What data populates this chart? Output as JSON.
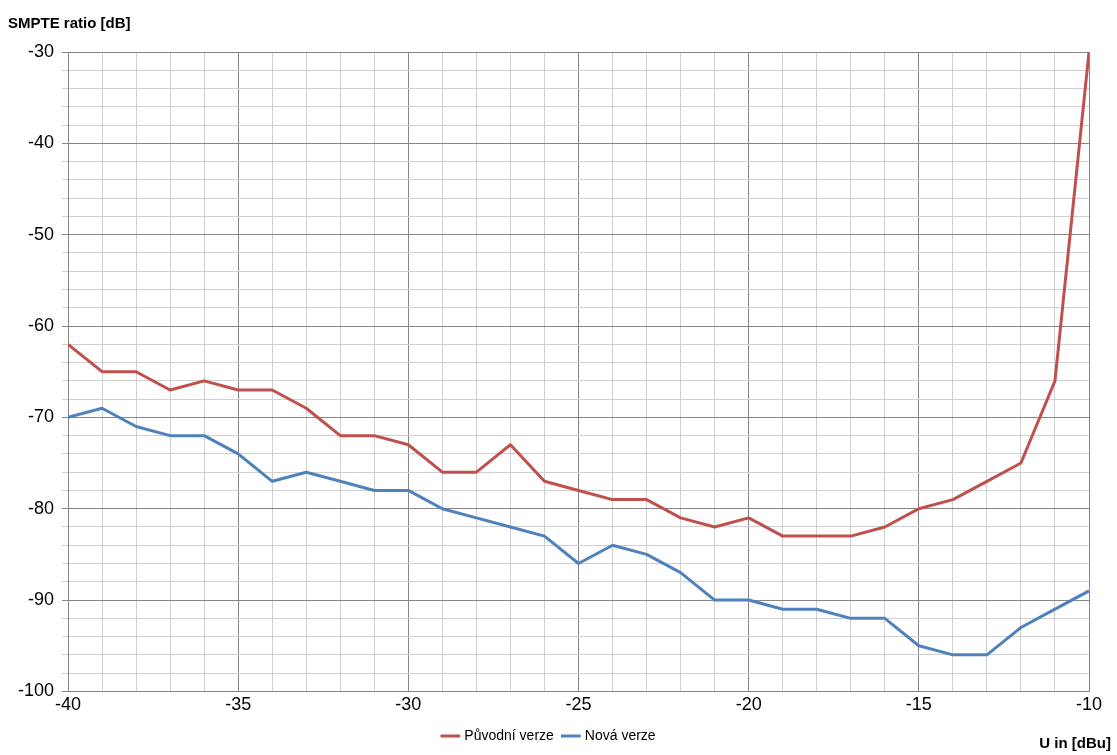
{
  "chart_data": {
    "type": "line",
    "xlabel": "U in [dBu]",
    "ylabel": "SMPTE ratio [dB]",
    "x": [
      -40,
      -39,
      -38,
      -37,
      -36,
      -35,
      -34,
      -33,
      -32,
      -31,
      -30,
      -29,
      -28,
      -27,
      -26,
      -25,
      -24,
      -23,
      -22,
      -21,
      -20,
      -19,
      -18,
      -17,
      -16,
      -15,
      -14,
      -13,
      -12,
      -11,
      -10
    ],
    "series": [
      {
        "name": "Původní verze",
        "color": "#c0504d",
        "values": [
          -62,
          -65,
          -65,
          -67,
          -66,
          -67,
          -67,
          -69,
          -72,
          -72,
          -73,
          -76,
          -76,
          -73,
          -77,
          -78,
          -79,
          -79,
          -81,
          -82,
          -81,
          -83,
          -83,
          -83,
          -82,
          -80,
          -79,
          -77,
          -75,
          -66,
          -30
        ]
      },
      {
        "name": "Nová verze",
        "color": "#4f81bd",
        "values": [
          -70,
          -69,
          -71,
          -72,
          -72,
          -74,
          -77,
          -76,
          -77,
          -78,
          -78,
          -80,
          -81,
          -82,
          -83,
          -86,
          -84,
          -85,
          -87,
          -90,
          -90,
          -91,
          -91,
          -92,
          -92,
          -95,
          -96,
          -96,
          -93,
          -91,
          -89
        ]
      }
    ],
    "xlim": [
      -40,
      -10
    ],
    "xticks": [
      -40,
      {
        "value": -39,
        "label": null
      },
      {
        "value": -38,
        "label": null
      },
      {
        "value": -37,
        "label": null
      },
      {
        "value": -36,
        "label": null
      },
      -35,
      {
        "value": -34,
        "label": null
      },
      {
        "value": -33,
        "label": null
      },
      {
        "value": -32,
        "label": null
      },
      {
        "value": -31,
        "label": null
      },
      -30,
      {
        "value": -29,
        "label": null
      },
      {
        "value": -28,
        "label": null
      },
      {
        "value": -27,
        "label": null
      },
      {
        "value": -26,
        "label": null
      },
      -25,
      {
        "value": -24,
        "label": null
      },
      {
        "value": -23,
        "label": null
      },
      {
        "value": -22,
        "label": null
      },
      {
        "value": -21,
        "label": null
      },
      -20,
      {
        "value": -19,
        "label": null
      },
      {
        "value": -18,
        "label": null
      },
      {
        "value": -17,
        "label": null
      },
      {
        "value": -16,
        "label": null
      },
      -15,
      {
        "value": -14,
        "label": null
      },
      {
        "value": -13,
        "label": null
      },
      {
        "value": -12,
        "label": null
      },
      {
        "value": -11,
        "label": null
      },
      -10
    ],
    "ylim": [
      -100,
      -30
    ],
    "yticks": [
      -100,
      {
        "value": -98,
        "label": null
      },
      {
        "value": -96,
        "label": null
      },
      {
        "value": -94,
        "label": null
      },
      {
        "value": -92,
        "label": null
      },
      -90,
      {
        "value": -88,
        "label": null
      },
      {
        "value": -86,
        "label": null
      },
      {
        "value": -84,
        "label": null
      },
      {
        "value": -82,
        "label": null
      },
      -80,
      {
        "value": -78,
        "label": null
      },
      {
        "value": -76,
        "label": null
      },
      {
        "value": -74,
        "label": null
      },
      {
        "value": -72,
        "label": null
      },
      -70,
      {
        "value": -68,
        "label": null
      },
      {
        "value": -66,
        "label": null
      },
      {
        "value": -64,
        "label": null
      },
      {
        "value": -62,
        "label": null
      },
      -60,
      {
        "value": -58,
        "label": null
      },
      {
        "value": -56,
        "label": null
      },
      {
        "value": -54,
        "label": null
      },
      {
        "value": -52,
        "label": null
      },
      -50,
      {
        "value": -48,
        "label": null
      },
      {
        "value": -46,
        "label": null
      },
      {
        "value": -44,
        "label": null
      },
      {
        "value": -42,
        "label": null
      },
      -40,
      {
        "value": -38,
        "label": null
      },
      {
        "value": -36,
        "label": null
      },
      {
        "value": -34,
        "label": null
      },
      {
        "value": -32,
        "label": null
      },
      -30
    ],
    "grid": true,
    "legend": "bottom",
    "marker": "none",
    "line_style": "solid"
  }
}
